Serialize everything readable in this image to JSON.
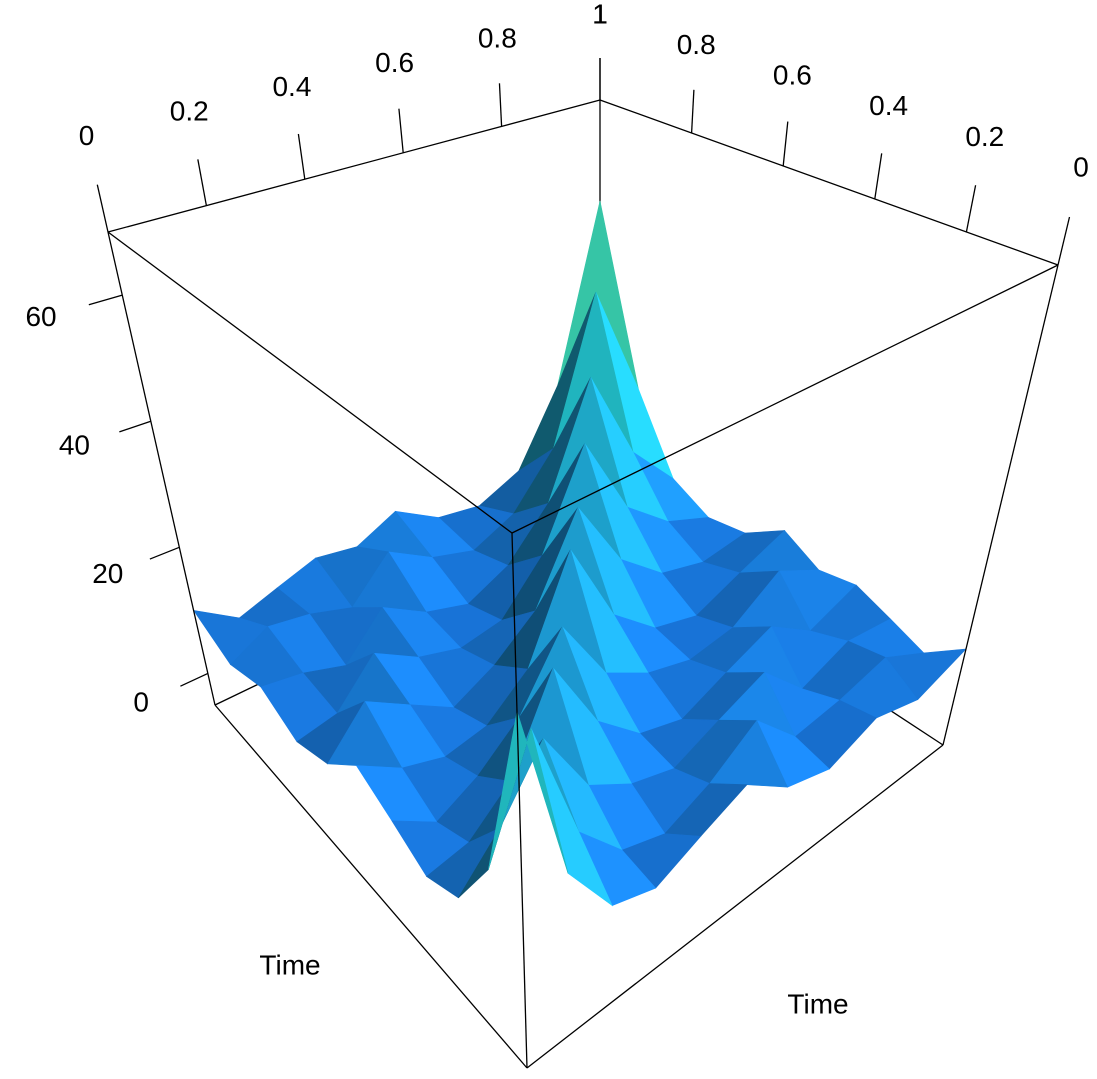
{
  "chart_data": {
    "type": "surface",
    "xlabel": "Time",
    "ylabel": "Time",
    "x": [
      0,
      0.1,
      0.2,
      0.3,
      0.4,
      0.5,
      0.6,
      0.7,
      0.8,
      0.9,
      1
    ],
    "y": [
      0,
      0.1,
      0.2,
      0.3,
      0.4,
      0.5,
      0.6,
      0.7,
      0.8,
      0.9,
      1
    ],
    "z": [
      [
        45,
        18,
        9,
        7,
        10,
        13,
        8,
        6,
        9,
        7,
        10
      ],
      [
        18,
        34,
        15,
        8,
        6,
        9,
        14,
        7,
        8,
        10,
        6
      ],
      [
        9,
        15,
        24,
        13,
        9,
        7,
        10,
        13,
        6,
        9,
        8
      ],
      [
        7,
        8,
        13,
        26,
        14,
        8,
        6,
        9,
        12,
        7,
        10
      ],
      [
        10,
        6,
        9,
        14,
        24,
        13,
        9,
        7,
        8,
        13,
        9
      ],
      [
        13,
        9,
        7,
        8,
        13,
        28,
        14,
        8,
        6,
        9,
        12
      ],
      [
        8,
        14,
        10,
        6,
        9,
        14,
        27,
        15,
        9,
        7,
        8
      ],
      [
        6,
        7,
        13,
        9,
        7,
        8,
        15,
        30,
        16,
        10,
        7
      ],
      [
        9,
        8,
        6,
        12,
        8,
        6,
        9,
        16,
        34,
        18,
        10
      ],
      [
        7,
        10,
        9,
        7,
        13,
        9,
        7,
        10,
        18,
        42,
        22
      ],
      [
        10,
        6,
        8,
        10,
        9,
        12,
        8,
        7,
        10,
        22,
        52
      ]
    ],
    "xlim": [
      0,
      1
    ],
    "ylim": [
      0,
      1
    ],
    "zlim": [
      -5,
      70
    ],
    "xticks": [
      0,
      0.2,
      0.4,
      0.6,
      0.8,
      1
    ],
    "yticks": [
      0,
      0.2,
      0.4,
      0.6,
      0.8,
      1
    ],
    "zticks": [
      0,
      20,
      40,
      60
    ],
    "colormap": [
      "#1550cf",
      "#1a86dc",
      "#22c2b4",
      "#dde235",
      "#f07a1c"
    ]
  }
}
